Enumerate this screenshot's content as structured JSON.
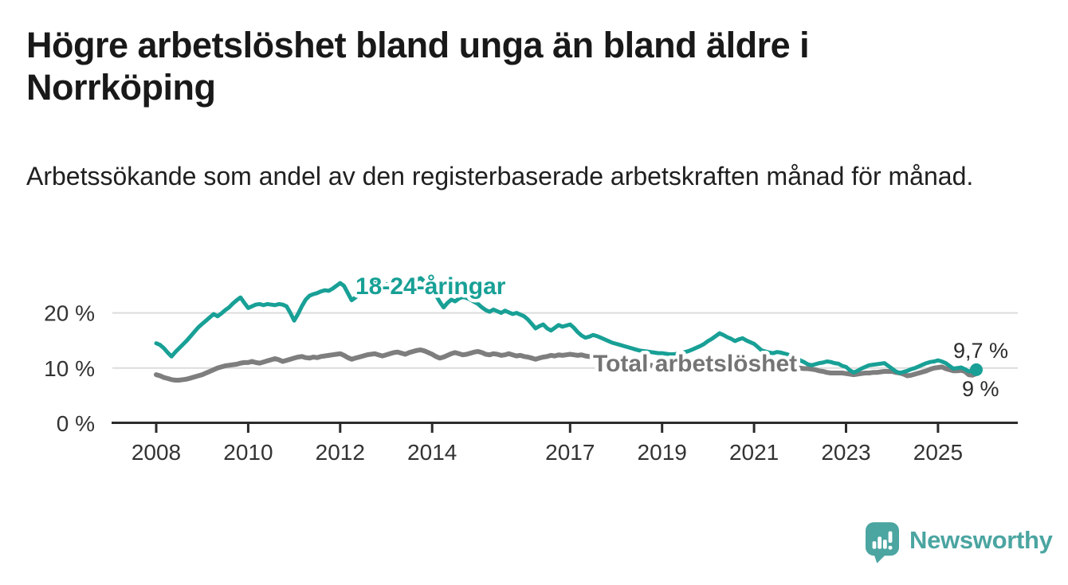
{
  "header": {
    "title": "Högre arbetslöshet bland unga än bland äldre i Norrköping",
    "subtitle": "Arbetssökande som andel av den registerbaserade arbetskraften månad för månad."
  },
  "chart_data": {
    "type": "line",
    "title": "Högre arbetslöshet bland unga än bland äldre i Norrköping",
    "subtitle": "Arbetssökande som andel av den registerbaserade arbetskraften månad för månad.",
    "x_unit": "months, monthly data from January 2008 to November 2025",
    "x_start_year": 2008,
    "x_ticks": [
      2008,
      2010,
      2012,
      2014,
      2017,
      2019,
      2021,
      2023,
      2025
    ],
    "y_ticks": [
      {
        "value": 0,
        "label": "0 %"
      },
      {
        "value": 10,
        "label": "10 %"
      },
      {
        "value": 20,
        "label": "20 %"
      }
    ],
    "ylim": [
      0,
      28
    ],
    "grid": "horizontal",
    "colors": {
      "young": "#18a096",
      "total": "#7e7e7e",
      "grid": "#dcdcdc",
      "axis": "#2b2b2b"
    },
    "series": [
      {
        "name": "Total arbetslöshet",
        "color": "#7e7e7e",
        "label_color": "#757575",
        "end_marker": false,
        "end_label": "9 %",
        "values": [
          8.8,
          8.6,
          8.3,
          8.1,
          7.9,
          7.8,
          7.8,
          7.9,
          8.0,
          8.2,
          8.4,
          8.6,
          8.8,
          9.1,
          9.4,
          9.7,
          10.0,
          10.2,
          10.4,
          10.5,
          10.6,
          10.7,
          10.9,
          11.0,
          11.0,
          11.2,
          11.0,
          10.9,
          11.1,
          11.3,
          11.5,
          11.7,
          11.5,
          11.2,
          11.4,
          11.6,
          11.8,
          12.0,
          12.1,
          11.9,
          11.8,
          12.0,
          11.9,
          12.1,
          12.2,
          12.3,
          12.4,
          12.5,
          12.6,
          12.3,
          11.9,
          11.6,
          11.8,
          12.0,
          12.2,
          12.4,
          12.5,
          12.6,
          12.4,
          12.2,
          12.4,
          12.6,
          12.8,
          12.9,
          12.7,
          12.5,
          12.8,
          13.0,
          13.2,
          13.3,
          13.1,
          12.8,
          12.5,
          12.1,
          11.8,
          12.0,
          12.3,
          12.6,
          12.8,
          12.6,
          12.4,
          12.5,
          12.7,
          12.9,
          13.0,
          12.8,
          12.5,
          12.4,
          12.6,
          12.5,
          12.3,
          12.4,
          12.6,
          12.4,
          12.2,
          12.3,
          12.1,
          12.0,
          11.8,
          11.6,
          11.8,
          12.0,
          12.1,
          12.3,
          12.2,
          12.4,
          12.3,
          12.4,
          12.5,
          12.4,
          12.3,
          12.4,
          12.2,
          12.1,
          12.0,
          11.9,
          11.8,
          11.7,
          11.6,
          11.5,
          11.4,
          11.3,
          11.2,
          11.1,
          11.0,
          10.9,
          10.8,
          10.7,
          10.6,
          10.5,
          10.4,
          10.3,
          10.3,
          10.2,
          10.1,
          10.1,
          10.0,
          10.0,
          10.0,
          10.1,
          10.1,
          10.2,
          10.3,
          10.4,
          10.6,
          10.8,
          11.0,
          11.2,
          11.3,
          11.2,
          11.1,
          11.0,
          10.9,
          10.8,
          10.7,
          10.6,
          10.5,
          10.4,
          10.3,
          10.2,
          10.1,
          10.0,
          9.9,
          9.9,
          9.8,
          9.8,
          9.7,
          9.7,
          10.0,
          9.9,
          9.9,
          9.8,
          9.7,
          9.5,
          9.4,
          9.2,
          9.1,
          9.1,
          9.1,
          9.1,
          9.0,
          8.9,
          8.8,
          8.9,
          9.0,
          9.1,
          9.1,
          9.2,
          9.2,
          9.3,
          9.4,
          9.4,
          9.4,
          9.2,
          9.1,
          8.9,
          8.6,
          8.7,
          8.9,
          9.1,
          9.3,
          9.5,
          9.8,
          10.0,
          10.1,
          10.2,
          9.9,
          9.7,
          9.5,
          9.5,
          9.6,
          9.4,
          8.8,
          8.7,
          9.0
        ]
      },
      {
        "name": "18-24-åringar",
        "color": "#18a096",
        "label_color": "#18a096",
        "end_marker": true,
        "end_label": "9,7 %",
        "values": [
          14.5,
          14.2,
          13.6,
          12.8,
          12.1,
          12.9,
          13.6,
          14.3,
          15.0,
          15.8,
          16.6,
          17.4,
          18.0,
          18.6,
          19.2,
          19.8,
          19.4,
          19.9,
          20.5,
          21.0,
          21.7,
          22.3,
          22.8,
          21.8,
          20.9,
          21.2,
          21.5,
          21.6,
          21.4,
          21.6,
          21.5,
          21.4,
          21.6,
          21.5,
          21.2,
          20.0,
          18.6,
          19.8,
          21.2,
          22.4,
          23.1,
          23.4,
          23.6,
          23.9,
          24.1,
          24.0,
          24.4,
          24.9,
          25.4,
          24.9,
          23.6,
          22.3,
          22.8,
          23.5,
          24.1,
          24.7,
          25.2,
          25.5,
          25.2,
          24.9,
          25.1,
          25.5,
          25.9,
          26.2,
          25.8,
          25.4,
          25.1,
          25.6,
          26.0,
          26.3,
          25.7,
          25.0,
          24.3,
          23.2,
          22.0,
          21.0,
          21.8,
          22.4,
          22.1,
          22.6,
          22.9,
          22.7,
          22.4,
          22.0,
          21.6,
          21.0,
          20.5,
          20.2,
          20.6,
          20.3,
          20.0,
          20.4,
          20.1,
          19.8,
          20.0,
          19.7,
          19.4,
          18.8,
          18.0,
          17.2,
          17.6,
          17.9,
          17.2,
          16.8,
          17.3,
          17.8,
          17.5,
          17.7,
          17.9,
          17.3,
          16.5,
          15.9,
          15.5,
          15.7,
          16.0,
          15.8,
          15.5,
          15.2,
          14.9,
          14.6,
          14.4,
          14.2,
          14.0,
          13.8,
          13.6,
          13.4,
          13.2,
          13.1,
          13.0,
          12.9,
          12.8,
          12.7,
          12.7,
          12.6,
          12.5,
          12.5,
          12.6,
          12.7,
          12.9,
          13.1,
          13.4,
          13.7,
          14.0,
          14.4,
          14.9,
          15.3,
          15.8,
          16.3,
          16.0,
          15.6,
          15.3,
          14.9,
          15.2,
          15.4,
          15.0,
          14.7,
          14.4,
          13.8,
          13.2,
          13.0,
          12.8,
          12.7,
          12.9,
          12.8,
          12.6,
          12.4,
          12.2,
          11.9,
          11.4,
          11.1,
          10.7,
          10.5,
          10.7,
          10.9,
          11.0,
          11.2,
          11.1,
          10.9,
          10.8,
          10.4,
          10.2,
          9.6,
          9.2,
          9.5,
          9.9,
          10.2,
          10.5,
          10.6,
          10.7,
          10.8,
          10.9,
          10.4,
          9.9,
          9.4,
          9.1,
          9.3,
          9.5,
          9.8,
          10.0,
          10.3,
          10.6,
          10.9,
          11.1,
          11.2,
          11.4,
          11.2,
          10.9,
          10.4,
          9.9,
          10.0,
          10.1,
          9.8,
          9.4,
          9.6,
          9.7
        ]
      }
    ]
  },
  "footer": {
    "brand": "Newsworthy",
    "brand_color": "#4ba5a1",
    "logo_icon": "bar-chart-speech-bubble-icon"
  }
}
